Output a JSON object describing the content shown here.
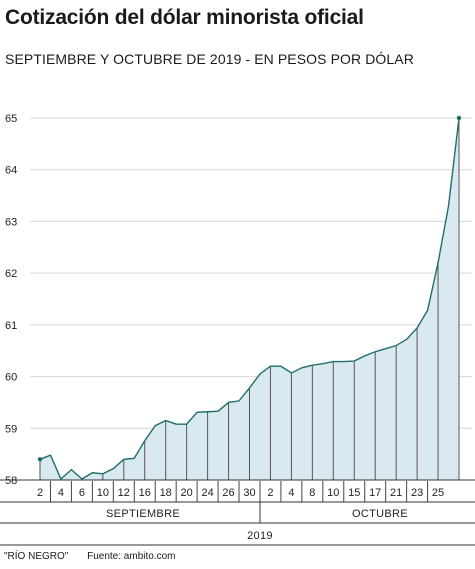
{
  "header": {
    "title": "Cotización del dólar minorista oficial",
    "subtitle": "SEPTIEMBRE Y OCTUBRE DE 2019 - EN PESOS POR DÓLAR"
  },
  "footer": {
    "credit": "\"RÍO NEGRO\"",
    "source": "Fuente: ambito.com"
  },
  "colors": {
    "line": "#1f6f6a",
    "area": "#d9e9f0",
    "grid": "#d6d6d6"
  },
  "chart_data": {
    "type": "area",
    "title": "Cotización del dólar minorista oficial",
    "subtitle": "SEPTIEMBRE Y OCTUBRE DE 2019 - EN PESOS POR DÓLAR",
    "ylim": [
      58,
      65
    ],
    "yticks": [
      58,
      59,
      60,
      61,
      62,
      63,
      64,
      65
    ],
    "grid": true,
    "xtick_labels": [
      "2",
      "4",
      "6",
      "10",
      "12",
      "16",
      "18",
      "20",
      "24",
      "26",
      "30",
      "2",
      "4",
      "8",
      "10",
      "15",
      "17",
      "21",
      "23",
      "25"
    ],
    "months": [
      "SEPTIEMBRE",
      "OCTUBRE"
    ],
    "year": "2019",
    "series": [
      {
        "values": [
          58.4,
          58.48,
          58.02,
          58.2,
          58.02,
          58.14,
          58.12,
          58.22,
          58.4,
          58.42,
          58.76,
          59.05,
          59.15,
          59.08,
          59.08,
          59.31,
          59.32,
          59.33,
          59.5,
          59.53,
          59.78,
          60.05,
          60.2,
          60.2,
          60.07,
          60.17,
          60.22,
          60.25,
          60.29,
          60.29,
          60.3,
          60.4,
          60.48,
          60.54,
          60.6,
          60.72,
          60.94,
          61.28,
          62.2,
          63.3,
          65.0
        ]
      }
    ]
  }
}
